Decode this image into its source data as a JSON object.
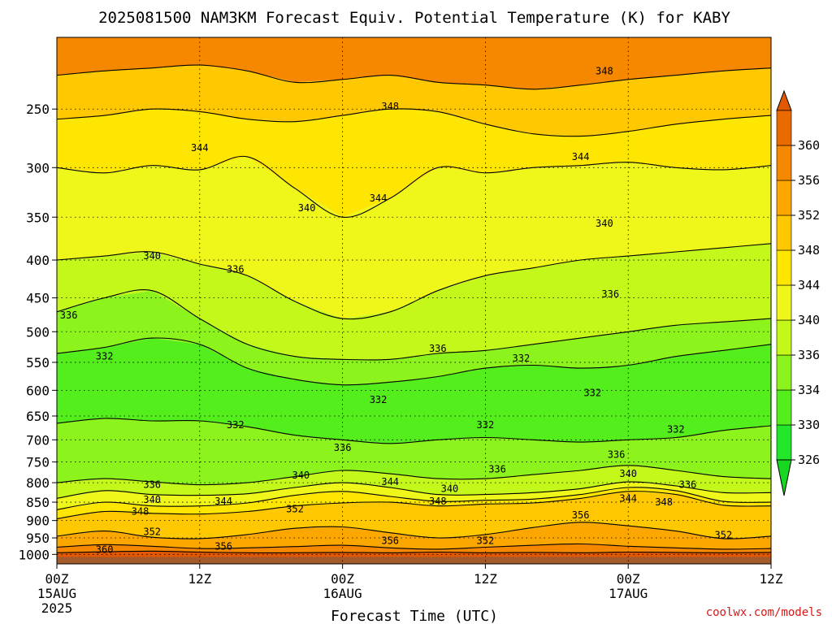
{
  "chart_data": {
    "type": "heatmap",
    "title": "2025081500 NAM3KM Forecast Equiv. Potential Temperature (K) for KABY",
    "xlabel": "Forecast Time (UTC)",
    "ylabel": "",
    "y_scale": "log",
    "y_reversed": true,
    "y_ticks": [
      250,
      300,
      350,
      400,
      450,
      500,
      550,
      600,
      650,
      700,
      750,
      800,
      850,
      900,
      950,
      1000
    ],
    "ylim": [
      1000,
      200
    ],
    "x_ticks": [
      {
        "hour": 0,
        "label": "00Z",
        "sub": "15AUG",
        "year": "2025"
      },
      {
        "hour": 12,
        "label": "12Z",
        "sub": "",
        "year": ""
      },
      {
        "hour": 24,
        "label": "00Z",
        "sub": "16AUG",
        "year": ""
      },
      {
        "hour": 36,
        "label": "12Z",
        "sub": "",
        "year": ""
      },
      {
        "hour": 48,
        "label": "00Z",
        "sub": "17AUG",
        "year": ""
      },
      {
        "hour": 60,
        "label": "12Z",
        "sub": "",
        "year": ""
      }
    ],
    "xlim": [
      0,
      60
    ],
    "grid": true,
    "colorbar": {
      "levels": [
        326,
        330,
        334,
        336,
        340,
        344,
        348,
        352,
        356,
        360
      ],
      "colors": [
        "#22e62a",
        "#54ee1c",
        "#8cf41c",
        "#c4f81a",
        "#eef61a",
        "#ffe600",
        "#ffc800",
        "#fca600",
        "#f68800",
        "#ea6a00"
      ],
      "below_color": "#16d820",
      "above_color": "#e25800"
    },
    "ground_color": "#a55a2c",
    "contours": [
      {
        "value": 360,
        "p": [
          995,
          992,
          990,
          993,
          995,
          995,
          994,
          995,
          993,
          995,
          994,
          995,
          993,
          994,
          995,
          994
        ]
      },
      {
        "value": 356,
        "p": [
          978,
          970,
          975,
          982,
          980,
          976,
          972,
          980,
          984,
          978,
          972,
          968,
          975,
          980,
          984,
          982
        ]
      },
      {
        "value": 352,
        "p": [
          945,
          930,
          948,
          952,
          940,
          922,
          918,
          935,
          950,
          940,
          920,
          905,
          915,
          930,
          952,
          945
        ]
      },
      {
        "value": 348,
        "p": [
          895,
          875,
          880,
          882,
          875,
          860,
          852,
          850,
          860,
          855,
          852,
          840,
          822,
          830,
          858,
          860
        ]
      },
      {
        "value": 344,
        "p": [
          870,
          850,
          860,
          860,
          852,
          832,
          822,
          835,
          848,
          845,
          842,
          830,
          812,
          820,
          848,
          850
        ]
      },
      {
        "value": 340,
        "p": [
          840,
          820,
          830,
          832,
          828,
          812,
          800,
          812,
          830,
          830,
          825,
          815,
          798,
          808,
          825,
          825
        ]
      },
      {
        "value": 336,
        "p": [
          800,
          790,
          798,
          805,
          800,
          785,
          770,
          778,
          790,
          790,
          780,
          770,
          758,
          770,
          785,
          790
        ]
      },
      {
        "value": 332,
        "p": [
          665,
          655,
          660,
          660,
          672,
          690,
          700,
          708,
          700,
          695,
          700,
          705,
          700,
          695,
          680,
          670
        ]
      },
      {
        "value": 332,
        "p": [
          535,
          525,
          510,
          520,
          560,
          580,
          590,
          585,
          575,
          560,
          555,
          560,
          555,
          540,
          530,
          520
        ]
      },
      {
        "value": 336,
        "p": [
          470,
          450,
          440,
          480,
          520,
          540,
          545,
          545,
          535,
          530,
          520,
          510,
          500,
          490,
          485,
          480
        ]
      },
      {
        "value": 340,
        "p": [
          400,
          395,
          390,
          405,
          420,
          455,
          480,
          470,
          440,
          420,
          410,
          400,
          395,
          390,
          385,
          380
        ]
      },
      {
        "value": 344,
        "p": [
          300,
          305,
          298,
          302,
          290,
          320,
          350,
          330,
          300,
          305,
          300,
          298,
          295,
          300,
          302,
          298
        ]
      },
      {
        "value": 348,
        "p": [
          258,
          255,
          250,
          252,
          258,
          260,
          255,
          250,
          252,
          262,
          270,
          272,
          268,
          262,
          258,
          255
        ]
      },
      {
        "value": 352,
        "p": [
          225,
          222,
          220,
          218,
          222,
          230,
          228,
          225,
          230,
          232,
          235,
          232,
          228,
          225,
          222,
          220
        ]
      }
    ],
    "contour_labels": [
      {
        "text": "348",
        "hour": 28,
        "p": 248
      },
      {
        "text": "348",
        "hour": 46,
        "p": 222
      },
      {
        "text": "344",
        "hour": 12,
        "p": 282
      },
      {
        "text": "344",
        "hour": 44,
        "p": 290
      },
      {
        "text": "344",
        "hour": 27,
        "p": 330
      },
      {
        "text": "340",
        "hour": 21,
        "p": 340
      },
      {
        "text": "340",
        "hour": 46,
        "p": 357
      },
      {
        "text": "340",
        "hour": 8,
        "p": 395
      },
      {
        "text": "336",
        "hour": 15,
        "p": 412
      },
      {
        "text": "336",
        "hour": 46.5,
        "p": 445
      },
      {
        "text": "336",
        "hour": 1,
        "p": 475
      },
      {
        "text": "336",
        "hour": 32,
        "p": 527
      },
      {
        "text": "332",
        "hour": 4,
        "p": 540
      },
      {
        "text": "332",
        "hour": 39,
        "p": 543
      },
      {
        "text": "332",
        "hour": 45,
        "p": 605
      },
      {
        "text": "332",
        "hour": 27,
        "p": 618
      },
      {
        "text": "332",
        "hour": 15,
        "p": 668
      },
      {
        "text": "332",
        "hour": 36,
        "p": 668
      },
      {
        "text": "332",
        "hour": 52,
        "p": 678
      },
      {
        "text": "336",
        "hour": 24,
        "p": 717
      },
      {
        "text": "336",
        "hour": 47,
        "p": 733
      },
      {
        "text": "336",
        "hour": 37,
        "p": 767
      },
      {
        "text": "340",
        "hour": 20.5,
        "p": 782
      },
      {
        "text": "344",
        "hour": 28,
        "p": 798
      },
      {
        "text": "340",
        "hour": 33,
        "p": 815
      },
      {
        "text": "340",
        "hour": 48,
        "p": 778
      },
      {
        "text": "336",
        "hour": 8,
        "p": 805
      },
      {
        "text": "336",
        "hour": 53,
        "p": 805
      },
      {
        "text": "340",
        "hour": 8,
        "p": 843
      },
      {
        "text": "344",
        "hour": 14,
        "p": 848
      },
      {
        "text": "344",
        "hour": 48,
        "p": 840
      },
      {
        "text": "348",
        "hour": 32,
        "p": 848
      },
      {
        "text": "348",
        "hour": 51,
        "p": 850
      },
      {
        "text": "348",
        "hour": 7,
        "p": 875
      },
      {
        "text": "352",
        "hour": 20,
        "p": 868
      },
      {
        "text": "356",
        "hour": 44,
        "p": 885
      },
      {
        "text": "352",
        "hour": 8,
        "p": 932
      },
      {
        "text": "352",
        "hour": 56,
        "p": 942
      },
      {
        "text": "356",
        "hour": 28,
        "p": 958
      },
      {
        "text": "352",
        "hour": 36,
        "p": 958
      },
      {
        "text": "356",
        "hour": 14,
        "p": 975
      },
      {
        "text": "360",
        "hour": 4,
        "p": 985
      }
    ]
  },
  "footer": {
    "credit": "coolwx.com/models"
  }
}
